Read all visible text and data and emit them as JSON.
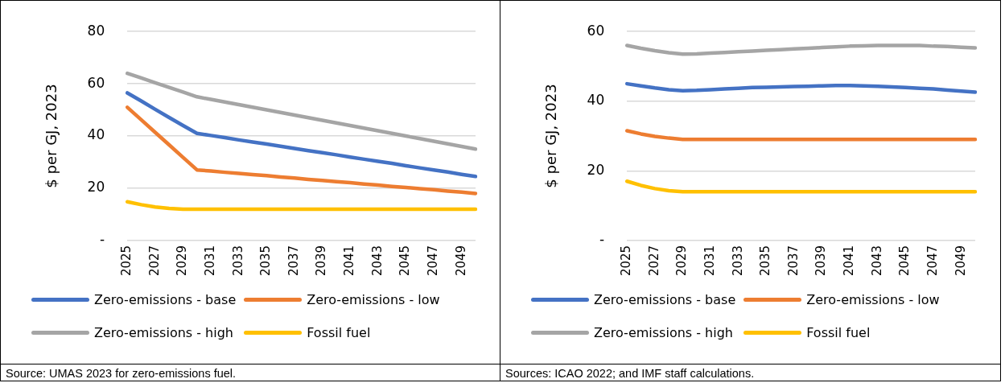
{
  "chart_data": [
    {
      "type": "line",
      "ylabel": "$ per GJ, 2023",
      "categories": [
        "2025",
        null,
        "2027",
        null,
        "2029",
        null,
        "2031",
        null,
        "2033",
        null,
        "2035",
        null,
        "2037",
        null,
        "2039",
        null,
        "2041",
        null,
        "2043",
        null,
        "2045",
        null,
        "2047",
        null,
        "2049",
        null
      ],
      "series": [
        {
          "name": "Zero-emissions - base",
          "color": "#4472c4",
          "values": [
            56.5,
            53.4,
            50.2,
            47.1,
            44,
            41,
            40.2,
            39.4,
            38.5,
            37.7,
            36.9,
            36.1,
            35.2,
            34.4,
            33.6,
            32.8,
            31.9,
            31.1,
            30.3,
            29.5,
            28.6,
            27.8,
            27,
            26.2,
            25.3,
            24.5
          ]
        },
        {
          "name": "Zero-emissions - low",
          "color": "#ed7d31",
          "values": [
            51,
            46.2,
            41.4,
            36.6,
            31.8,
            27,
            26.6,
            26.1,
            25.7,
            25.2,
            24.8,
            24.3,
            23.9,
            23.4,
            23,
            22.5,
            22.1,
            21.6,
            21.2,
            20.7,
            20.3,
            19.8,
            19.4,
            18.9,
            18.5,
            18
          ]
        },
        {
          "name": "Zero-emissions - high",
          "color": "#a5a5a5",
          "values": [
            64,
            62.2,
            60.4,
            58.6,
            56.8,
            55,
            54,
            53,
            52,
            51,
            50,
            49,
            48,
            47,
            46,
            45,
            44,
            43,
            42,
            41,
            40,
            39,
            38,
            37,
            36,
            35
          ]
        },
        {
          "name": "Fossil fuel",
          "color": "#ffc000",
          "values": [
            14.8,
            13.7,
            12.8,
            12.3,
            12,
            12,
            12,
            12,
            12,
            12,
            12,
            12,
            12,
            12,
            12,
            12,
            12,
            12,
            12,
            12,
            12,
            12,
            12,
            12,
            12,
            12
          ]
        }
      ],
      "ylim": [
        0,
        80
      ],
      "yticks": [
        {
          "value": 0,
          "label": "-"
        },
        20,
        40,
        60,
        80
      ],
      "grid": "y",
      "legend": "bottom",
      "marker": "none",
      "line_style": "solid",
      "annotations": [
        "Source: UMAS 2023 for zero-emissions fuel."
      ]
    },
    {
      "type": "line",
      "ylabel": "$ per GJ, 2023",
      "categories": [
        "2025",
        null,
        "2027",
        null,
        "2029",
        null,
        "2031",
        null,
        "2033",
        null,
        "2035",
        null,
        "2037",
        null,
        "2039",
        null,
        "2041",
        null,
        "2043",
        null,
        "2045",
        null,
        "2047",
        null,
        "2049",
        null
      ],
      "series": [
        {
          "name": "Zero-emissions - base",
          "color": "#4472c4",
          "values": [
            45,
            44.4,
            43.8,
            43.3,
            43,
            43.1,
            43.3,
            43.5,
            43.7,
            43.9,
            44,
            44.1,
            44.2,
            44.3,
            44.4,
            44.5,
            44.5,
            44.4,
            44.3,
            44.1,
            43.9,
            43.7,
            43.5,
            43.2,
            42.9,
            42.6
          ]
        },
        {
          "name": "Zero-emissions - low",
          "color": "#ed7d31",
          "values": [
            31.5,
            30.6,
            29.9,
            29.4,
            29,
            29,
            29,
            29,
            29,
            29,
            29,
            29,
            29,
            29,
            29,
            29,
            29,
            29,
            29,
            29,
            29,
            29,
            29,
            29,
            29,
            29
          ]
        },
        {
          "name": "Zero-emissions - high",
          "color": "#a5a5a5",
          "values": [
            56,
            55.2,
            54.5,
            53.9,
            53.5,
            53.6,
            53.8,
            54,
            54.2,
            54.4,
            54.6,
            54.8,
            55,
            55.2,
            55.4,
            55.6,
            55.8,
            55.9,
            56,
            56,
            56,
            56,
            55.8,
            55.7,
            55.5,
            55.3
          ]
        },
        {
          "name": "Fossil fuel",
          "color": "#ffc000",
          "values": [
            17,
            15.8,
            14.9,
            14.3,
            14,
            14,
            14,
            14,
            14,
            14,
            14,
            14,
            14,
            14,
            14,
            14,
            14,
            14,
            14,
            14,
            14,
            14,
            14,
            14,
            14,
            14
          ]
        }
      ],
      "ylim": [
        0,
        60
      ],
      "yticks": [
        {
          "value": 0,
          "label": "-"
        },
        20,
        40,
        60
      ],
      "grid": "y",
      "legend": "bottom",
      "marker": "none",
      "line_style": "solid",
      "annotations": [
        "Sources: ICAO 2022; and IMF staff calculations."
      ]
    }
  ]
}
